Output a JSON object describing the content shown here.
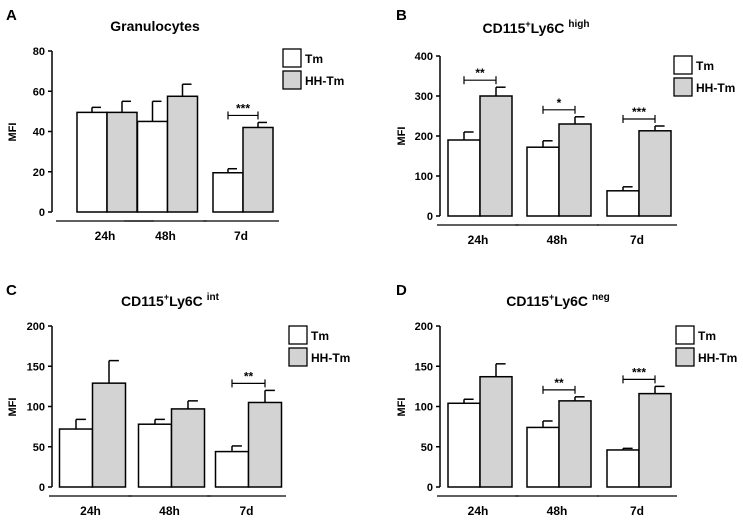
{
  "colors": {
    "tm": "#ffffff",
    "hhtm": "#d3d3d3",
    "stroke": "#000000"
  },
  "chart_data": [
    {
      "panel": "A",
      "type": "bar",
      "title": "Granulocytes",
      "title_sup": "",
      "title_suffix": "",
      "ylabel": "MFI",
      "ylim": [
        0,
        80
      ],
      "yticks": [
        0,
        20,
        40,
        60,
        80
      ],
      "categories": [
        "24h",
        "48h",
        "7d"
      ],
      "legend": [
        "Tm",
        "HH-Tm"
      ],
      "series": [
        {
          "name": "Tm",
          "values": [
            49.5,
            45,
            19.5
          ],
          "errors": [
            2.5,
            10,
            2
          ]
        },
        {
          "name": "HH-Tm",
          "values": [
            49.5,
            57.5,
            42
          ],
          "errors": [
            5.5,
            6,
            2.5
          ]
        }
      ],
      "significance": [
        {
          "group": 2,
          "label": "***"
        }
      ]
    },
    {
      "panel": "B",
      "type": "bar",
      "title": "CD115",
      "title_sup": "+",
      "title_suffix": "Ly6C",
      "title_qualifier": "high",
      "ylabel": "MFI",
      "ylim": [
        0,
        400
      ],
      "yticks": [
        0,
        100,
        200,
        300,
        400
      ],
      "categories": [
        "24h",
        "48h",
        "7d"
      ],
      "legend": [
        "Tm",
        "HH-Tm"
      ],
      "series": [
        {
          "name": "Tm",
          "values": [
            190,
            172,
            63
          ],
          "errors": [
            20,
            16,
            10
          ]
        },
        {
          "name": "HH-Tm",
          "values": [
            300,
            230,
            213
          ],
          "errors": [
            22,
            18,
            12
          ]
        }
      ],
      "significance": [
        {
          "group": 0,
          "label": "**"
        },
        {
          "group": 1,
          "label": "*"
        },
        {
          "group": 2,
          "label": "***"
        }
      ]
    },
    {
      "panel": "C",
      "type": "bar",
      "title": "CD115",
      "title_sup": "+",
      "title_suffix": "Ly6C",
      "title_qualifier": "int",
      "ylabel": "MFI",
      "ylim": [
        0,
        200
      ],
      "yticks": [
        0,
        50,
        100,
        150,
        200
      ],
      "categories": [
        "24h",
        "48h",
        "7d"
      ],
      "legend": [
        "Tm",
        "HH-Tm"
      ],
      "series": [
        {
          "name": "Tm",
          "values": [
            72,
            78,
            44
          ],
          "errors": [
            12,
            6,
            7
          ]
        },
        {
          "name": "HH-Tm",
          "values": [
            129,
            97,
            105
          ],
          "errors": [
            28,
            10,
            15
          ]
        }
      ],
      "significance": [
        {
          "group": 2,
          "label": "**"
        }
      ]
    },
    {
      "panel": "D",
      "type": "bar",
      "title": "CD115",
      "title_sup": "+",
      "title_suffix": "Ly6C",
      "title_qualifier": "neg",
      "ylabel": "MFI",
      "ylim": [
        0,
        200
      ],
      "yticks": [
        0,
        50,
        100,
        150,
        200
      ],
      "categories": [
        "24h",
        "48h",
        "7d"
      ],
      "legend": [
        "Tm",
        "HH-Tm"
      ],
      "series": [
        {
          "name": "Tm",
          "values": [
            104,
            74,
            46
          ],
          "errors": [
            5,
            8,
            2
          ]
        },
        {
          "name": "HH-Tm",
          "values": [
            137,
            107,
            116
          ],
          "errors": [
            16,
            5,
            9
          ]
        }
      ],
      "significance": [
        {
          "group": 1,
          "label": "**"
        },
        {
          "group": 2,
          "label": "***"
        }
      ]
    }
  ]
}
